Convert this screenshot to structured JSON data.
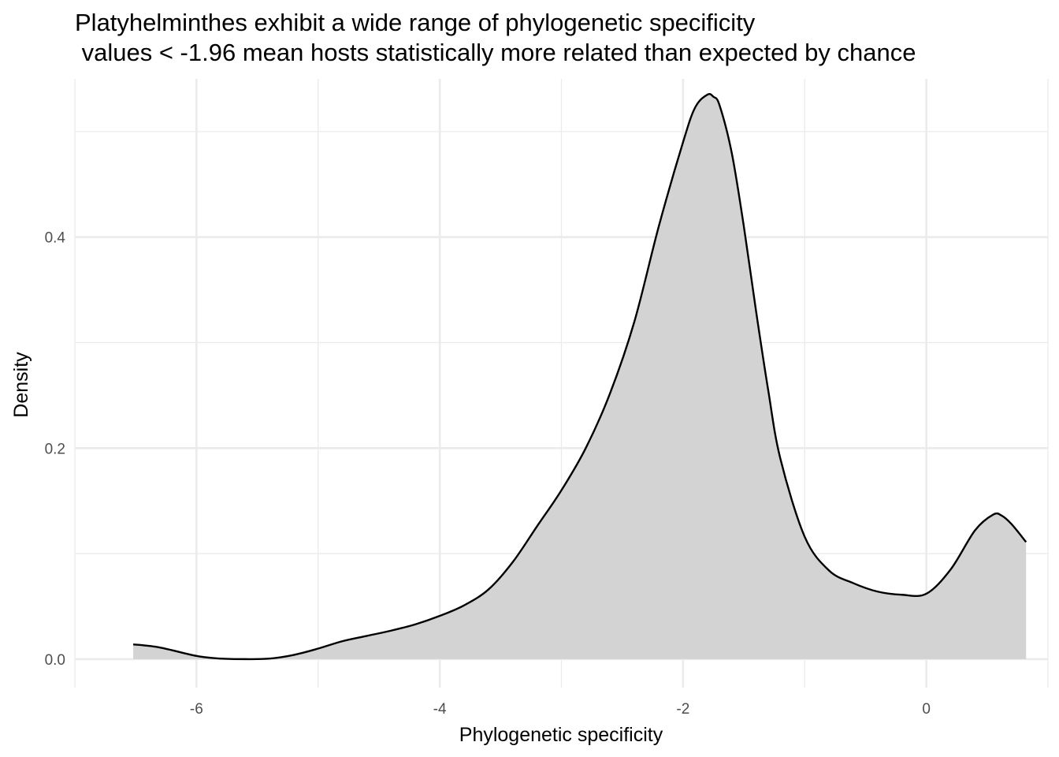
{
  "chart_data": {
    "type": "area",
    "title": "Platyhelminthes exhibit a wide range of phylogenetic specificity",
    "subtitle": " values < -1.96 mean hosts statistically more related than expected by chance",
    "xlabel": "Phylogenetic specificity",
    "ylabel": "Density",
    "xlim": [
      -7.0,
      1.0
    ],
    "ylim": [
      -0.027,
      0.55
    ],
    "x_ticks": [
      -6,
      -4,
      -2,
      0
    ],
    "x_tick_labels": [
      "-6",
      "-4",
      "-2",
      "0"
    ],
    "y_ticks": [
      0.0,
      0.2,
      0.4
    ],
    "y_tick_labels": [
      "0.0",
      "0.2",
      "0.4"
    ],
    "grid": true,
    "fill_color": "#d3d3d3",
    "line_color": "#000000",
    "x": [
      -6.52,
      -6.3,
      -6.0,
      -5.8,
      -5.6,
      -5.4,
      -5.2,
      -5.0,
      -4.8,
      -4.6,
      -4.4,
      -4.2,
      -4.0,
      -3.8,
      -3.6,
      -3.4,
      -3.2,
      -3.0,
      -2.8,
      -2.6,
      -2.4,
      -2.2,
      -2.0,
      -1.9,
      -1.8,
      -1.75,
      -1.7,
      -1.6,
      -1.5,
      -1.4,
      -1.3,
      -1.2,
      -1.0,
      -0.8,
      -0.6,
      -0.4,
      -0.2,
      0.0,
      0.2,
      0.4,
      0.55,
      0.62,
      0.7,
      0.82
    ],
    "y": [
      0.014,
      0.011,
      0.003,
      0.0005,
      0.0,
      0.0005,
      0.004,
      0.01,
      0.017,
      0.022,
      0.027,
      0.033,
      0.041,
      0.051,
      0.066,
      0.092,
      0.126,
      0.16,
      0.2,
      0.252,
      0.32,
      0.41,
      0.49,
      0.523,
      0.535,
      0.533,
      0.525,
      0.48,
      0.41,
      0.33,
      0.255,
      0.19,
      0.116,
      0.084,
      0.072,
      0.064,
      0.061,
      0.062,
      0.085,
      0.122,
      0.137,
      0.136,
      0.128,
      0.111
    ]
  }
}
